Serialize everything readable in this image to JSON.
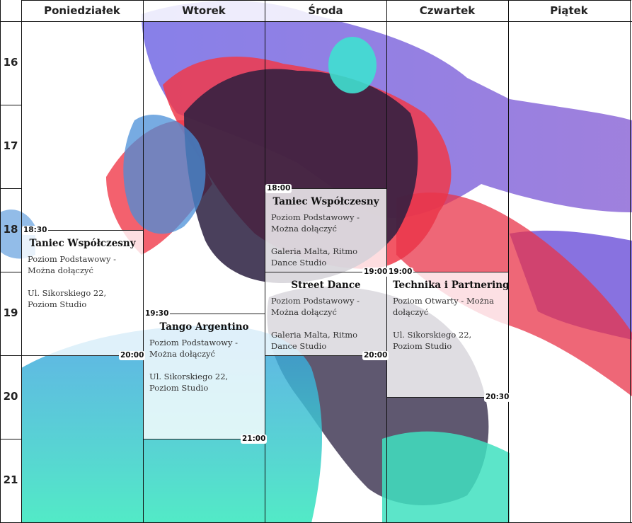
{
  "days": [
    "Poniedziałek",
    "Wtorek",
    "Środa",
    "Czwartek",
    "Piątek"
  ],
  "hours": [
    "16",
    "17",
    "18",
    "19",
    "20",
    "21"
  ],
  "events": [
    {
      "day": 0,
      "start": 18.5,
      "end": 20.0,
      "start_label": "18:30",
      "end_label": "20:00",
      "title": "Taniec Współczesny",
      "level": "Poziom Podstawowy - Można dołączyć",
      "location": "Ul. Sikorskiego 22, Poziom Studio"
    },
    {
      "day": 1,
      "start": 19.5,
      "end": 21.0,
      "start_label": "19:30",
      "end_label": "21:00",
      "title": "Tango Argentino",
      "level": "Poziom Podstawowy - Można dołączyć",
      "location": "Ul. Sikorskiego 22, Poziom Studio"
    },
    {
      "day": 2,
      "start": 18.0,
      "end": 19.0,
      "start_label": "18:00",
      "end_label": "19:00",
      "title": "Taniec Współczesny",
      "level": "Poziom Podstawowy - Można dołączyć",
      "location": "Galeria Malta, Ritmo Dance Studio"
    },
    {
      "day": 2,
      "start": 19.0,
      "end": 20.0,
      "start_label": "",
      "end_label": "20:00",
      "title": "Street Dance",
      "level": "Poziom Podstawowy - Można dołączyć",
      "location": "Galeria Malta, Ritmo Dance Studio"
    },
    {
      "day": 3,
      "start": 19.0,
      "end": 20.5,
      "start_label": "19:00",
      "end_label": "20:30",
      "title": "Technika i Partnering",
      "level": "Poziom Otwarty - Można dołączyć",
      "location": "Ul. Sikorskiego 22, Poziom Studio"
    }
  ],
  "colors": {
    "purple": "#6b4fd8",
    "red": "#f0394a",
    "teal": "#3fe0c0",
    "blue": "#4a8fd8"
  }
}
